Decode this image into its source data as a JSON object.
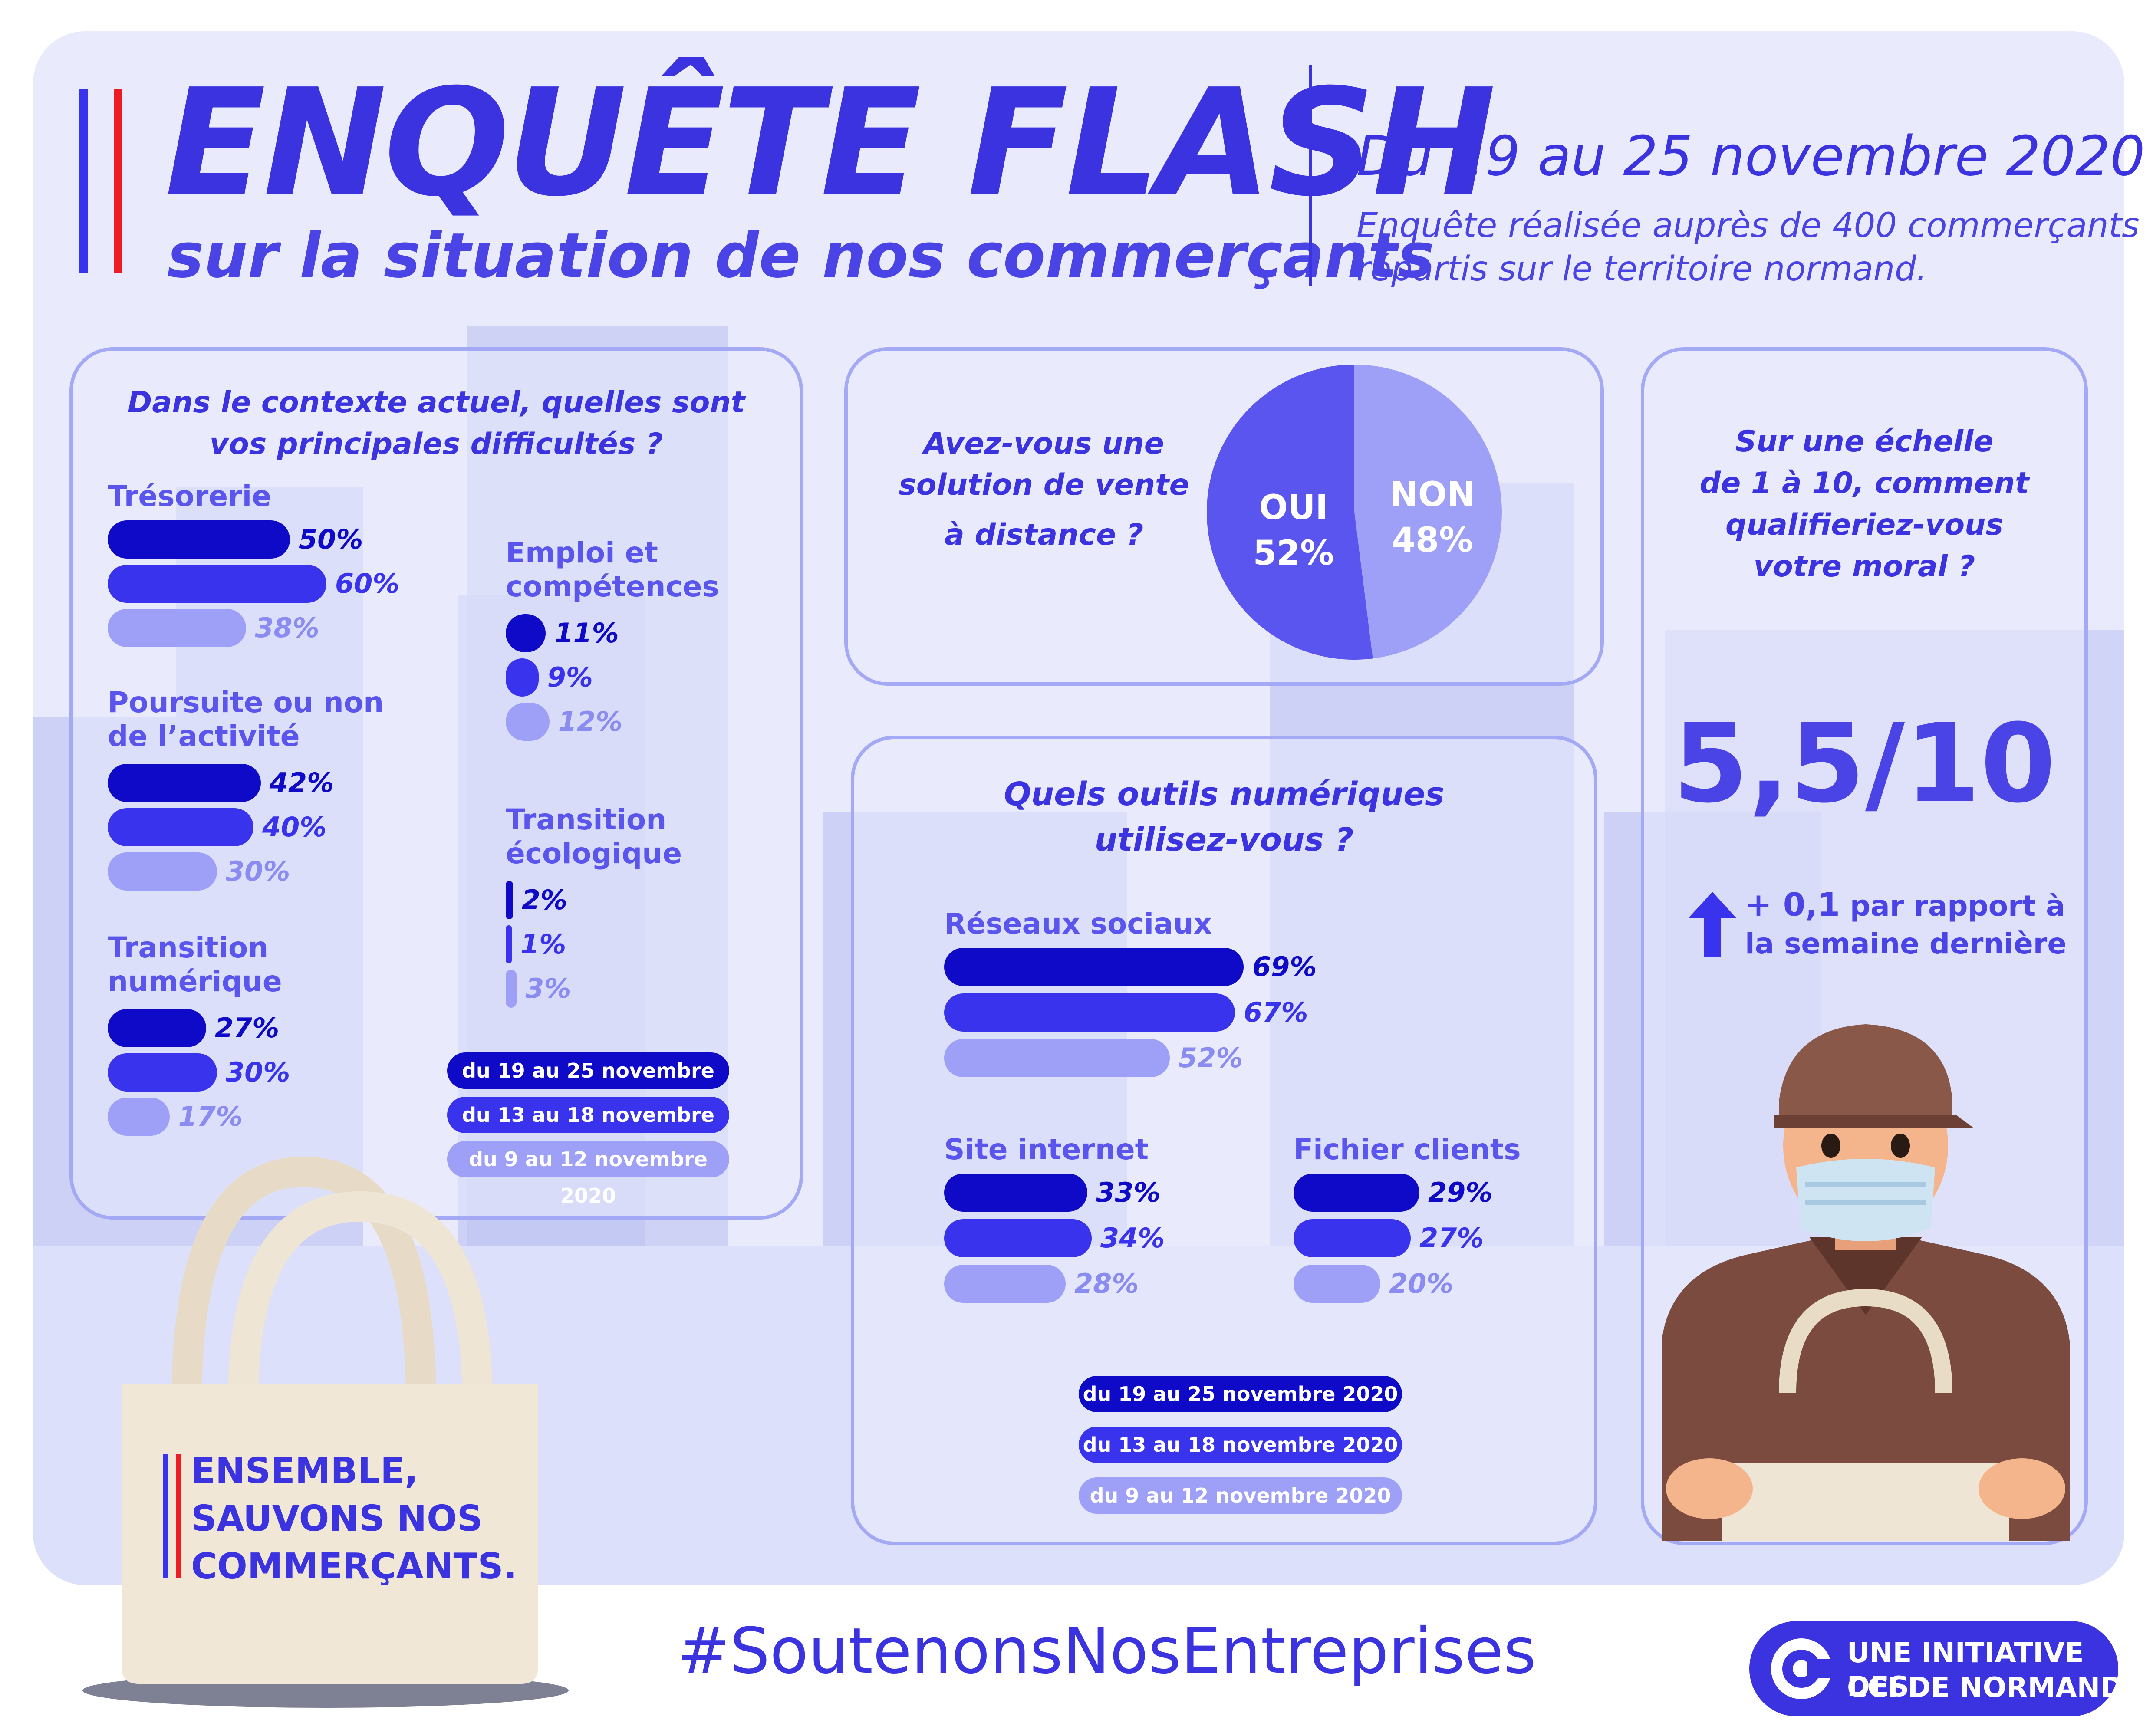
{
  "header": {
    "title": "ENQUÊTE FLASH",
    "subtitle": "sur la situation de nos commerçants",
    "date": "Du 19 au 25 novembre 2020",
    "description_line1": "Enquête réalisée auprès de 400 commerçants",
    "description_line2": "répartis sur le territoire normand."
  },
  "legend": {
    "period1": "du 19 au 25 novembre 2020",
    "period2": "du 13 au 18 novembre 2020",
    "period3": "du 9 au 12 novembre 2020"
  },
  "colors": {
    "period1": "#0f0ac8",
    "period2": "#3a33ee",
    "period3": "#9e9ff6"
  },
  "difficulties": {
    "question_line1": "Dans le contexte actuel, quelles sont",
    "question_line2": "vos principales difficultés ?",
    "groups": [
      {
        "label_line1": "Trésorerie",
        "label_line2": "",
        "values": [
          "50%",
          "60%",
          "38%"
        ],
        "fractions": [
          0.5,
          0.6,
          0.38
        ]
      },
      {
        "label_line1": "Poursuite ou non",
        "label_line2": "de l’activité",
        "values": [
          "42%",
          "40%",
          "30%"
        ],
        "fractions": [
          0.42,
          0.4,
          0.3
        ]
      },
      {
        "label_line1": "Transition",
        "label_line2": "numérique",
        "values": [
          "27%",
          "30%",
          "17%"
        ],
        "fractions": [
          0.27,
          0.3,
          0.17
        ]
      },
      {
        "label_line1": "Emploi et",
        "label_line2": "compétences",
        "values": [
          "11%",
          "9%",
          "12%"
        ],
        "fractions": [
          0.11,
          0.09,
          0.12
        ]
      },
      {
        "label_line1": "Transition",
        "label_line2": "écologique",
        "values": [
          "2%",
          "1%",
          "3%"
        ],
        "fractions": [
          0.02,
          0.01,
          0.03
        ]
      }
    ]
  },
  "remote_sales": {
    "question_line1": "Avez-vous une",
    "question_line2": "solution de vente",
    "question_line3": "à distance ?",
    "yes_label": "OUI",
    "yes_value": "52%",
    "no_label": "NON",
    "no_value": "48%",
    "yes_fraction": 0.52
  },
  "digital_tools": {
    "question_line1": "Quels outils numériques",
    "question_line2": "utilisez-vous ?",
    "groups": [
      {
        "label": "Réseaux sociaux",
        "values": [
          "69%",
          "67%",
          "52%"
        ],
        "fractions": [
          0.69,
          0.67,
          0.52
        ]
      },
      {
        "label": "Site internet",
        "values": [
          "33%",
          "34%",
          "28%"
        ],
        "fractions": [
          0.33,
          0.34,
          0.28
        ]
      },
      {
        "label": "Fichier clients",
        "values": [
          "29%",
          "27%",
          "20%"
        ],
        "fractions": [
          0.29,
          0.27,
          0.2
        ]
      }
    ]
  },
  "morale": {
    "question_line1": "Sur une échelle",
    "question_line2": "de 1 à 10, comment",
    "question_line3": "qualifieriez-vous",
    "question_line4": "votre moral ?",
    "score": "5,5/10",
    "delta": "+ 0,1",
    "delta_text_line1": "par rapport à",
    "delta_text_line2": "la semaine dernière",
    "arrow_icon": "arrow-up-icon"
  },
  "bag": {
    "line1": "ENSEMBLE,",
    "line2": "SAUVONS NOS",
    "line3": "COMMERÇANTS."
  },
  "footer": {
    "hashtag": "#SoutenonsNosEntreprises",
    "logo_line1": "UNE INITIATIVE DES",
    "logo_line2": "CCI DE NORMANDIE"
  }
}
